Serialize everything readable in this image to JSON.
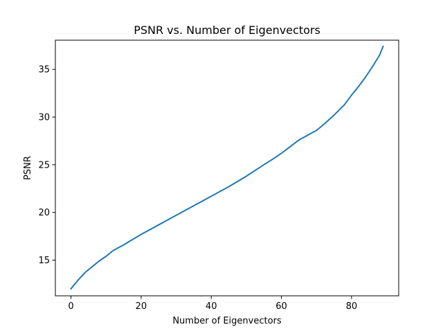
{
  "chart_data": {
    "type": "line",
    "title": "PSNR vs. Number of Eigenvectors",
    "xlabel": "Number of Eigenvectors",
    "ylabel": "PSNR",
    "xlim": [
      -4.45,
      93.45
    ],
    "ylim": [
      11.26,
      38.06
    ],
    "xticks": [
      0,
      20,
      40,
      60,
      80
    ],
    "yticks": [
      15,
      20,
      25,
      30,
      35
    ],
    "xtick_labels": [
      "0",
      "20",
      "40",
      "60",
      "80"
    ],
    "ytick_labels": [
      "15",
      "20",
      "25",
      "30",
      "35"
    ],
    "grid": false,
    "series": [
      {
        "color": "#1f77b4",
        "x": [
          0,
          2,
          4,
          6,
          8,
          10,
          12,
          15,
          20,
          25,
          30,
          35,
          40,
          45,
          50,
          55,
          58,
          60,
          65,
          70,
          72,
          75,
          78,
          79,
          80,
          82,
          84,
          86,
          87,
          88,
          89
        ],
        "y": [
          12.0,
          12.9,
          13.7,
          14.3,
          14.9,
          15.4,
          16.0,
          16.6,
          17.7,
          18.7,
          19.7,
          20.7,
          21.7,
          22.7,
          23.8,
          25.0,
          25.7,
          26.2,
          27.6,
          28.6,
          29.2,
          30.2,
          31.3,
          31.8,
          32.3,
          33.2,
          34.2,
          35.3,
          35.9,
          36.5,
          37.4
        ]
      }
    ]
  }
}
